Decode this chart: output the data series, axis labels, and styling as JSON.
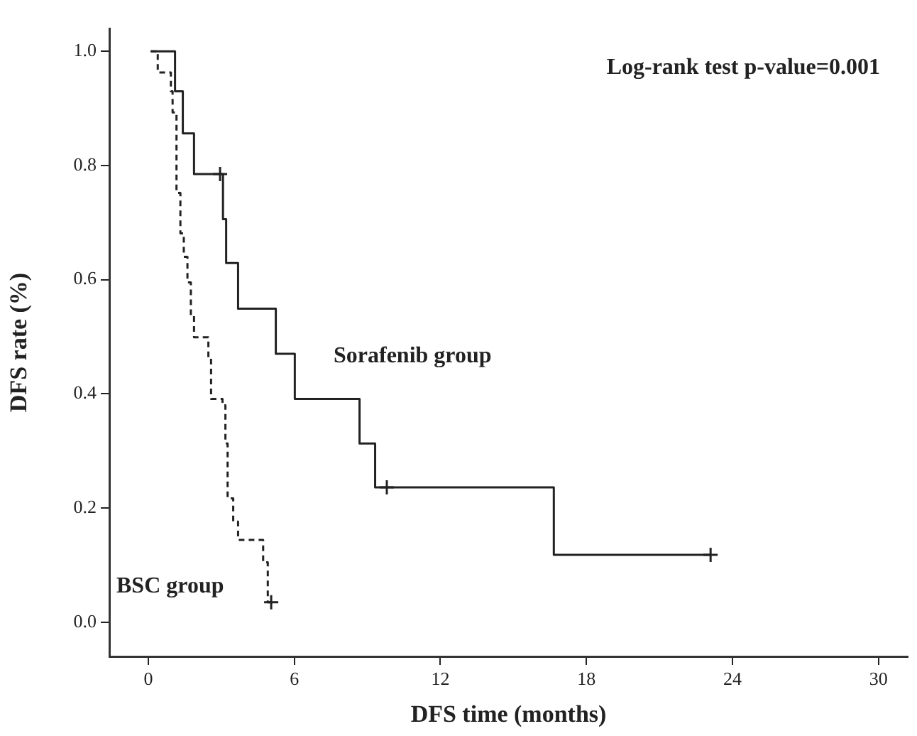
{
  "chart_data": {
    "type": "step",
    "xlabel": "DFS time (months)",
    "ylabel": "DFS rate (%)",
    "annotations": [
      "Log-rank test p-value=0.001"
    ],
    "xlim": [
      -1.6,
      31.2
    ],
    "ylim": [
      -0.06,
      1.04
    ],
    "xticks": [
      0,
      6,
      12,
      18,
      24,
      30
    ],
    "yticks": [
      {
        "value": 0,
        "label": "0.0"
      },
      {
        "value": 0.2,
        "label": "0.2"
      },
      {
        "value": 0.4,
        "label": "0.4"
      },
      {
        "value": 0.6,
        "label": "0.6"
      },
      {
        "value": 0.8,
        "label": "0.8"
      },
      {
        "value": 1,
        "label": "1.0"
      }
    ],
    "grid": false,
    "legend": false,
    "series": [
      {
        "name": "Sorafenib group",
        "type": "step",
        "color": "#222222",
        "line_style": "solid",
        "marker": "none",
        "x": [
          0.1,
          1.1,
          1.42,
          1.88,
          3.07,
          3.2,
          3.69,
          5.24,
          6.02,
          8.68,
          9.32,
          16.66,
          23.1
        ],
        "values": [
          1,
          0.93,
          0.856,
          0.785,
          0.706,
          0.629,
          0.549,
          0.47,
          0.391,
          0.313,
          0.236,
          0.118,
          0.118
        ]
      },
      {
        "name": "BSC group",
        "type": "step",
        "color": "#222222",
        "line_style": "dashed",
        "marker": "none",
        "x": [
          0.1,
          0.39,
          0.93,
          1.0,
          1.16,
          1.32,
          1.46,
          1.61,
          1.75,
          1.88,
          2.47,
          2.58,
          3.05,
          3.17,
          3.26,
          3.49,
          3.69,
          4.72,
          4.91,
          5.05
        ],
        "values": [
          1,
          0.963,
          0.93,
          0.893,
          0.752,
          0.681,
          0.64,
          0.595,
          0.536,
          0.499,
          0.462,
          0.391,
          0.38,
          0.313,
          0.217,
          0.176,
          0.144,
          0.105,
          0.035,
          0.035
        ]
      },
      {
        "type": "scatter",
        "color": "#222222",
        "marker": "cross",
        "x": [
          2.95,
          9.8,
          23.1
        ],
        "values": [
          0.785,
          0.236,
          0.118
        ]
      },
      {
        "type": "scatter",
        "color": "#222222",
        "marker": "cross",
        "x": [
          5.05
        ],
        "values": [
          0.035
        ]
      }
    ]
  }
}
